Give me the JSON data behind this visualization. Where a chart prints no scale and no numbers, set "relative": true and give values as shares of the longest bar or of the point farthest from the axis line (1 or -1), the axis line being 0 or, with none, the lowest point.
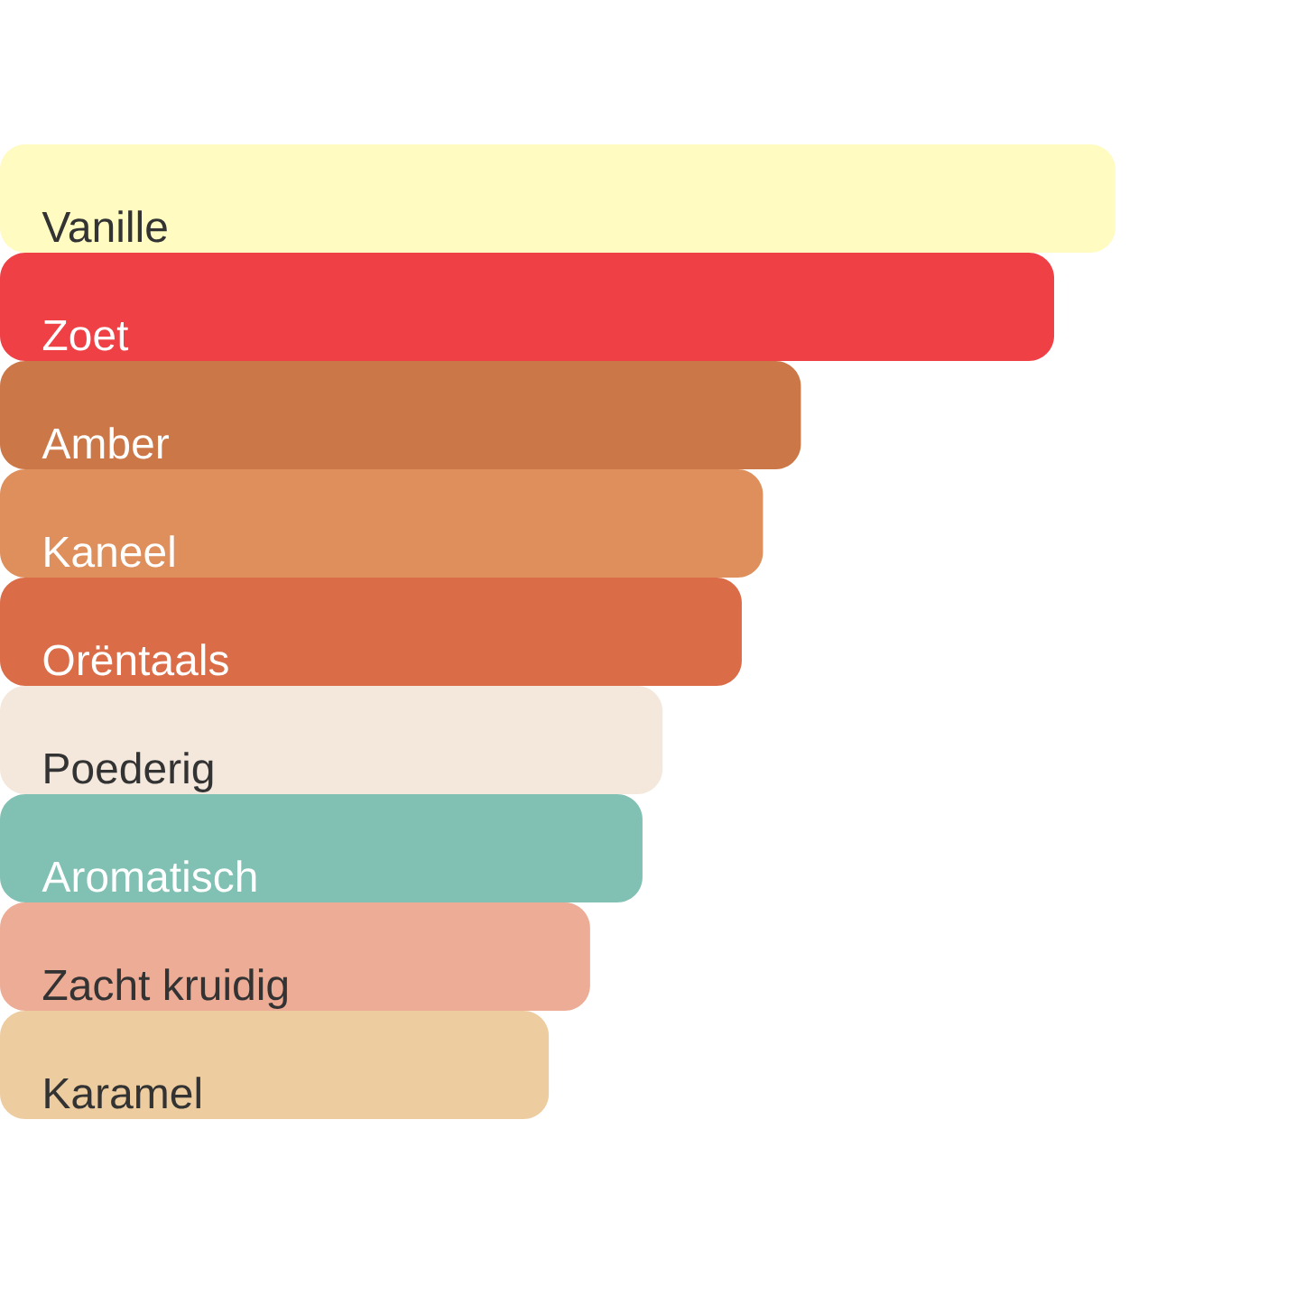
{
  "chart_data": {
    "type": "bar",
    "orientation": "horizontal",
    "relative": true,
    "categories": [
      "Vanille",
      "Zoet",
      "Amber",
      "Kaneel",
      "Orëntaals",
      "Poederig",
      "Aromatisch",
      "Zacht kruidig",
      "Karamel"
    ],
    "values": [
      1,
      0.945,
      0.718,
      0.684,
      0.665,
      0.594,
      0.576,
      0.529,
      0.492
    ],
    "colors": [
      "#fffbc1",
      "#ef4046",
      "#cb7747",
      "#de8f5c",
      "#da6c48",
      "#f4e8dc",
      "#80c1b3",
      "#edac96",
      "#edcc9f"
    ]
  }
}
